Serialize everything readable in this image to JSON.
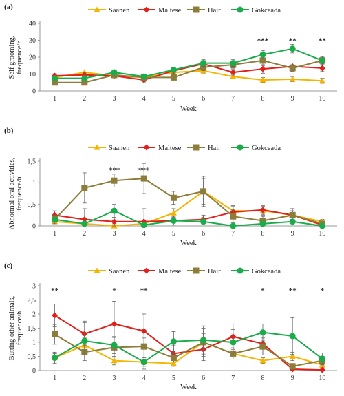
{
  "panels": [
    "(a)",
    "(b)",
    "(c)"
  ],
  "chart_data": [
    {
      "type": "line",
      "title": "",
      "xlabel": "Week",
      "ylabel": "Self grooming, frequence/h",
      "ylim": [
        0,
        40
      ],
      "yticks": [
        "0",
        "10",
        "20",
        "30",
        "40"
      ],
      "categories": [
        "1",
        "2",
        "3",
        "4",
        "5",
        "6",
        "7",
        "8",
        "9",
        "10"
      ],
      "legend_position": "top",
      "series": [
        {
          "name": "Saanen",
          "color": "#f5b400",
          "marker": "triangle",
          "values": [
            8,
            11,
            9,
            8,
            11,
            12,
            8.5,
            6.5,
            7,
            6
          ],
          "errors": [
            1.2,
            1.5,
            1.2,
            1.2,
            1.2,
            1.5,
            1.2,
            1.5,
            1.5,
            1.5
          ]
        },
        {
          "name": "Maltese",
          "color": "#e0211b",
          "marker": "diamond",
          "values": [
            9,
            9.5,
            9,
            6.5,
            12,
            16,
            11,
            13,
            14.5,
            13.5
          ],
          "errors": [
            1.2,
            1.5,
            1.2,
            1.2,
            1.5,
            2,
            2,
            2.5,
            2,
            2
          ]
        },
        {
          "name": "Hair",
          "color": "#8c7d3a",
          "marker": "square",
          "values": [
            5,
            5,
            9.5,
            8,
            8,
            14,
            15.5,
            18,
            13.5,
            18
          ],
          "errors": [
            1.2,
            1.2,
            1.5,
            1.2,
            1.2,
            2,
            2,
            3,
            2,
            2.5
          ]
        },
        {
          "name": "Gokceada",
          "color": "#1aab4b",
          "marker": "circle",
          "values": [
            7.5,
            7.5,
            11,
            8.5,
            12.5,
            16.5,
            16.5,
            21.5,
            25,
            18
          ],
          "errors": [
            1.2,
            1.2,
            1.5,
            1.2,
            1.5,
            2,
            2,
            2.5,
            2.5,
            2
          ]
        }
      ],
      "annotations": [
        {
          "category": "8",
          "text": "***",
          "y": 30
        },
        {
          "category": "9",
          "text": "**",
          "y": 30
        },
        {
          "category": "10",
          "text": "**",
          "y": 30
        }
      ]
    },
    {
      "type": "line",
      "title": "",
      "xlabel": "Week",
      "ylabel": "Abnormal oral activities, frequence/h",
      "ylim": [
        0,
        1.5
      ],
      "yticks": [
        "0",
        "0,5",
        "1",
        "1,5"
      ],
      "categories": [
        "1",
        "2",
        "3",
        "4",
        "5",
        "6",
        "7",
        "8",
        "9",
        "10"
      ],
      "legend_position": "top",
      "series": [
        {
          "name": "Saanen",
          "color": "#f5b400",
          "marker": "triangle",
          "values": [
            0.1,
            0.05,
            0.0,
            0.05,
            0.3,
            0.8,
            0.35,
            0.35,
            0.25,
            0.1
          ],
          "errors": [
            0.05,
            0.05,
            0.05,
            0.05,
            0.1,
            0.3,
            0.1,
            0.1,
            0.1,
            0.05
          ]
        },
        {
          "name": "Maltese",
          "color": "#e0211b",
          "marker": "diamond",
          "values": [
            0.25,
            0.15,
            0.1,
            0.1,
            0.12,
            0.15,
            0.32,
            0.37,
            0.25,
            0.02
          ],
          "errors": [
            0.1,
            0.25,
            0.3,
            0.3,
            0.1,
            0.1,
            0.15,
            0.1,
            0.15,
            0.05
          ]
        },
        {
          "name": "Hair",
          "color": "#8c7d3a",
          "marker": "square",
          "values": [
            0.15,
            0.88,
            1.05,
            1.1,
            0.65,
            0.8,
            0.22,
            0.12,
            0.25,
            0.05
          ],
          "errors": [
            0.1,
            0.35,
            0.15,
            0.35,
            0.15,
            0.35,
            0.15,
            0.1,
            0.15,
            0.05
          ]
        },
        {
          "name": "Gokceada",
          "color": "#1aab4b",
          "marker": "circle",
          "values": [
            0.15,
            0.05,
            0.35,
            0.02,
            0.12,
            0.1,
            0.0,
            0.05,
            0.1,
            0.0
          ],
          "errors": [
            0.05,
            0.05,
            0.15,
            0.05,
            0.05,
            0.05,
            0.02,
            0.05,
            0.05,
            0.02
          ]
        }
      ],
      "annotations": [
        {
          "category": "3",
          "text": "***",
          "y": 1.3
        },
        {
          "category": "4",
          "text": "***",
          "y": 1.3
        }
      ]
    },
    {
      "type": "line",
      "title": "",
      "xlabel": "Week",
      "ylabel": "Butting other animals, frequence/h",
      "ylim": [
        0,
        3
      ],
      "yticks": [
        "0",
        "0,5",
        "1",
        "1,5",
        "2",
        "2,5",
        "3"
      ],
      "categories": [
        "1",
        "2",
        "3",
        "4",
        "5",
        "6",
        "7",
        "8",
        "9",
        "10"
      ],
      "legend_position": "top",
      "series": [
        {
          "name": "Saanen",
          "color": "#f5b400",
          "marker": "triangle",
          "values": [
            0.45,
            0.9,
            0.35,
            0.3,
            0.25,
            1.0,
            0.6,
            0.35,
            0.5,
            0.2
          ],
          "errors": [
            0.15,
            0.25,
            0.15,
            0.15,
            0.1,
            0.3,
            0.2,
            0.1,
            0.15,
            0.1
          ]
        },
        {
          "name": "Maltese",
          "color": "#e0211b",
          "marker": "diamond",
          "values": [
            1.95,
            1.3,
            1.65,
            1.4,
            0.6,
            0.75,
            1.2,
            0.95,
            0.05,
            0.02
          ],
          "errors": [
            0.4,
            0.4,
            0.8,
            0.6,
            0.3,
            0.4,
            0.45,
            0.4,
            0.05,
            0.02
          ]
        },
        {
          "name": "Hair",
          "color": "#8c7d3a",
          "marker": "square",
          "values": [
            1.28,
            0.65,
            0.82,
            0.85,
            0.45,
            1.0,
            0.6,
            0.85,
            0.15,
            0.35
          ],
          "errors": [
            0.35,
            0.25,
            0.35,
            0.3,
            0.15,
            0.5,
            0.2,
            0.3,
            0.1,
            0.15
          ]
        },
        {
          "name": "Gokceada",
          "color": "#1aab4b",
          "marker": "circle",
          "values": [
            0.45,
            1.05,
            0.9,
            0.3,
            1.03,
            1.08,
            1.0,
            1.35,
            1.22,
            0.42
          ],
          "errors": [
            0.2,
            0.7,
            0.3,
            0.25,
            0.35,
            0.5,
            0.45,
            0.3,
            0.65,
            0.2
          ]
        }
      ],
      "annotations": [
        {
          "category": "1",
          "text": "**",
          "y": 2.85
        },
        {
          "category": "3",
          "text": "*",
          "y": 2.85
        },
        {
          "category": "4",
          "text": "**",
          "y": 2.85
        },
        {
          "category": "8",
          "text": "*",
          "y": 2.85
        },
        {
          "category": "9",
          "text": "**",
          "y": 2.85
        },
        {
          "category": "10",
          "text": "*",
          "y": 2.85
        }
      ]
    }
  ]
}
